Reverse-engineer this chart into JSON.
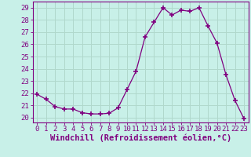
{
  "x": [
    0,
    1,
    2,
    3,
    4,
    5,
    6,
    7,
    8,
    9,
    10,
    11,
    12,
    13,
    14,
    15,
    16,
    17,
    18,
    19,
    20,
    21,
    22,
    23
  ],
  "y": [
    21.9,
    21.5,
    20.9,
    20.7,
    20.7,
    20.4,
    20.3,
    20.3,
    20.35,
    20.8,
    22.3,
    23.8,
    26.6,
    27.8,
    29.0,
    28.4,
    28.8,
    28.7,
    29.0,
    27.5,
    26.1,
    23.5,
    21.4,
    19.9
  ],
  "line_color": "#800080",
  "marker": "+",
  "marker_size": 4,
  "bg_color": "#c8f0e8",
  "grid_color": "#b0d8cc",
  "xlabel": "Windchill (Refroidissement éolien,°C)",
  "xlabel_color": "#800080",
  "ylabel_ticks": [
    20,
    21,
    22,
    23,
    24,
    25,
    26,
    27,
    28,
    29
  ],
  "xtick_labels": [
    "0",
    "1",
    "2",
    "3",
    "4",
    "5",
    "6",
    "7",
    "8",
    "9",
    "10",
    "11",
    "12",
    "13",
    "14",
    "15",
    "16",
    "17",
    "18",
    "19",
    "20",
    "21",
    "22",
    "23"
  ],
  "ylim": [
    19.6,
    29.5
  ],
  "xlim": [
    -0.5,
    23.5
  ],
  "tick_color": "#800080",
  "tick_fontsize": 6.5,
  "xlabel_fontsize": 7.5,
  "spine_color": "#800080"
}
